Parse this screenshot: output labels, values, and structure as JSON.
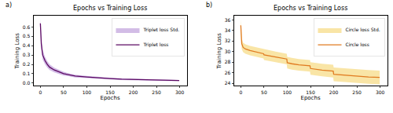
{
  "chart_data": [
    {
      "type": "line",
      "panel": "a)",
      "title": "Epochs vs Training Loss",
      "x_label": "Epochs",
      "y_label": "Training Loss",
      "x": [
        0,
        2,
        5,
        10,
        15,
        20,
        30,
        40,
        50,
        60,
        75,
        100,
        125,
        150,
        175,
        200,
        225,
        250,
        275,
        299
      ],
      "series": [
        {
          "name": "Triplet loss",
          "color": "#5c0a63",
          "values": [
            0.64,
            0.42,
            0.3,
            0.24,
            0.2,
            0.17,
            0.14,
            0.12,
            0.1,
            0.09,
            0.075,
            0.065,
            0.055,
            0.048,
            0.042,
            0.038,
            0.034,
            0.031,
            0.029,
            0.027
          ],
          "std": [
            0.05,
            0.06,
            0.05,
            0.04,
            0.035,
            0.03,
            0.025,
            0.02,
            0.02,
            0.015,
            0.015,
            0.012,
            0.01,
            0.01,
            0.01,
            0.008,
            0.008,
            0.007,
            0.007,
            0.006
          ],
          "std_name": "Triplet loss Std.",
          "std_color": "#b48fd6"
        }
      ],
      "xlim": [
        -15,
        315
      ],
      "xticks": [
        0,
        50,
        100,
        150,
        200,
        250,
        300
      ],
      "ylim": [
        -0.03,
        0.72
      ],
      "yticks": [
        {
          "value": 0,
          "label": "0.0"
        },
        0.1,
        0.2,
        0.3,
        0.4,
        0.5,
        0.6
      ],
      "grid": false,
      "legend": "upper right"
    },
    {
      "type": "line",
      "panel": "b)",
      "title": "Epochs vs Training Loss",
      "x_label": "Epochs",
      "y_label": "Training Loss",
      "x": [
        0,
        2,
        5,
        10,
        20,
        30,
        40,
        49,
        50,
        60,
        75,
        99,
        100,
        110,
        125,
        149,
        150,
        175,
        199,
        200,
        225,
        250,
        275,
        299
      ],
      "series": [
        {
          "name": "Circle loss",
          "color": "#e07b20",
          "values": [
            35.0,
            31.5,
            30.8,
            30.5,
            30.2,
            30.0,
            29.8,
            29.6,
            29.4,
            29.2,
            29.0,
            28.6,
            27.9,
            27.7,
            27.5,
            27.3,
            26.8,
            26.5,
            26.3,
            25.7,
            25.5,
            25.3,
            25.2,
            25.1
          ],
          "std": [
            1.2,
            1.0,
            0.9,
            0.9,
            0.9,
            0.9,
            0.9,
            0.9,
            1.0,
            1.0,
            1.0,
            1.0,
            1.1,
            1.1,
            1.1,
            1.1,
            1.2,
            1.2,
            1.2,
            1.3,
            1.3,
            1.3,
            1.3,
            1.3
          ],
          "std_name": "Circle loss Std.",
          "std_color": "#f5d36b"
        }
      ],
      "xlim": [
        -15,
        315
      ],
      "xticks": [
        0,
        50,
        100,
        150,
        200,
        250,
        300
      ],
      "ylim": [
        23.5,
        36.8
      ],
      "yticks": [
        24,
        26,
        28,
        30,
        32,
        34,
        36
      ],
      "grid": false,
      "legend": "upper right"
    }
  ]
}
